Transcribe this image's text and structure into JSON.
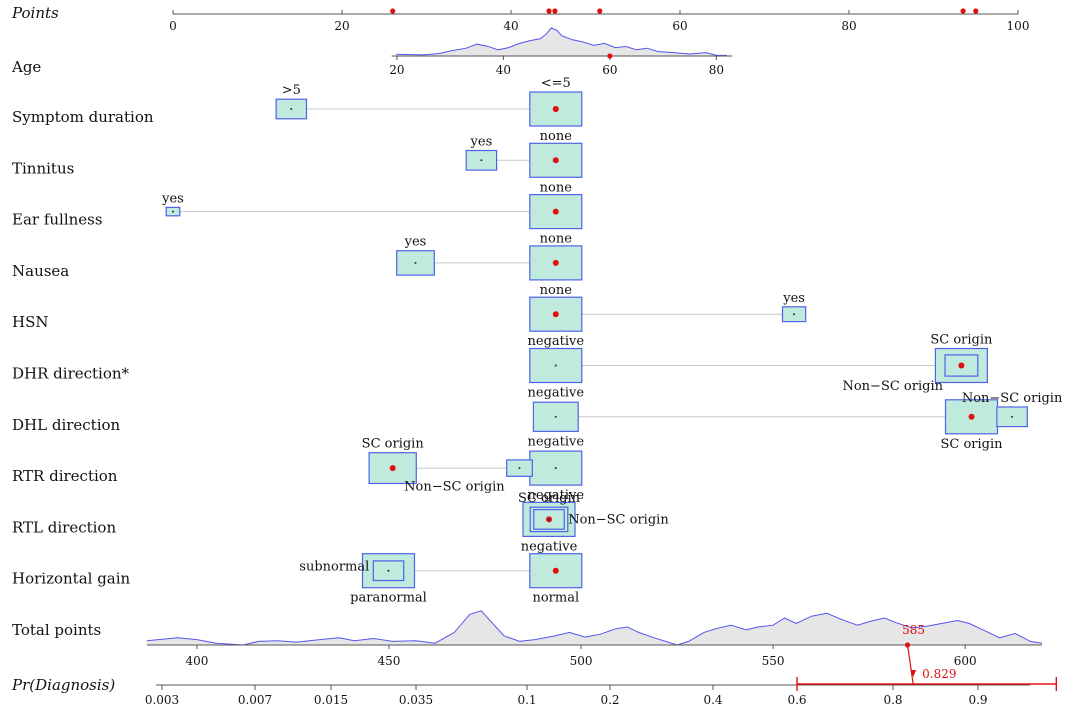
{
  "chart_data": {
    "type": "nomogram",
    "points_axis": {
      "label": "Points",
      "ticks": [
        0,
        20,
        40,
        60,
        80,
        100
      ],
      "marked_values": [
        26,
        44.5,
        45.2,
        50.5,
        93.5,
        95
      ]
    },
    "age": {
      "label": "Age",
      "ticks": [
        20,
        40,
        60,
        80
      ],
      "points_at_20": 26.5,
      "points_at_80": 64.3,
      "marked_value": 60,
      "density": [
        [
          20,
          0.06
        ],
        [
          25,
          0.04
        ],
        [
          28,
          0.09
        ],
        [
          30,
          0.18
        ],
        [
          33,
          0.28
        ],
        [
          35,
          0.42
        ],
        [
          37,
          0.35
        ],
        [
          39,
          0.22
        ],
        [
          41,
          0.3
        ],
        [
          43,
          0.45
        ],
        [
          45,
          0.55
        ],
        [
          47,
          0.62
        ],
        [
          48,
          0.78
        ],
        [
          49,
          1.0
        ],
        [
          50,
          0.92
        ],
        [
          51,
          0.72
        ],
        [
          53,
          0.58
        ],
        [
          55,
          0.5
        ],
        [
          57,
          0.38
        ],
        [
          59,
          0.45
        ],
        [
          61,
          0.3
        ],
        [
          63,
          0.34
        ],
        [
          65,
          0.22
        ],
        [
          67,
          0.28
        ],
        [
          69,
          0.16
        ],
        [
          72,
          0.12
        ],
        [
          75,
          0.07
        ],
        [
          78,
          0.12
        ],
        [
          80,
          0.03
        ],
        [
          82,
          0.02
        ]
      ]
    },
    "variables": [
      {
        "label": "Symptom duration",
        "levels": [
          {
            "name": ">5",
            "points": 14,
            "size": 0.55,
            "pos": "above",
            "selected": false
          },
          {
            "name": "<=5",
            "points": 45.3,
            "size": 1,
            "pos": "above",
            "selected": true
          },
          {
            "name": "none",
            "points": 45.3,
            "size": 1,
            "pos": "below",
            "selected": true
          }
        ]
      },
      {
        "label": "Tinnitus",
        "levels": [
          {
            "name": "yes",
            "points": 36.5,
            "size": 0.55,
            "pos": "above",
            "selected": false
          },
          {
            "name": "none",
            "points": 45.3,
            "size": 1,
            "pos": "below",
            "selected": true
          }
        ]
      },
      {
        "label": "Ear fullness",
        "levels": [
          {
            "name": "yes",
            "points": 0,
            "size": 0.2,
            "pos": "above",
            "selected": false
          },
          {
            "name": "none",
            "points": 45.3,
            "size": 1,
            "pos": "below",
            "selected": true
          }
        ]
      },
      {
        "label": "Nausea",
        "levels": [
          {
            "name": "yes",
            "points": 28.7,
            "size": 0.7,
            "pos": "above",
            "selected": false
          },
          {
            "name": "none",
            "points": 45.3,
            "size": 1,
            "pos": "below",
            "selected": true
          }
        ]
      },
      {
        "label": "HSN",
        "levels": [
          {
            "name": "negative",
            "points": 45.3,
            "size": 1,
            "pos": "below",
            "selected": true
          },
          {
            "name": "yes",
            "points": 73.5,
            "size": 0.4,
            "pos": "above",
            "selected": false
          }
        ]
      },
      {
        "label": "DHR direction*",
        "levels": [
          {
            "name": "negative",
            "points": 45.3,
            "size": 1,
            "pos": "below",
            "selected": false
          },
          {
            "name": "Non−SC origin",
            "points": 93.3,
            "size": 0.6,
            "pos": "below-left",
            "selected": false
          },
          {
            "name": "SC origin",
            "points": 93.3,
            "size": 1,
            "pos": "above",
            "selected": true
          }
        ]
      },
      {
        "label": "DHL direction",
        "levels": [
          {
            "name": "negative",
            "points": 45.3,
            "size": 0.85,
            "pos": "below",
            "selected": false
          },
          {
            "name": "SC origin",
            "points": 94.5,
            "size": 1,
            "pos": "below",
            "selected": true
          },
          {
            "name": "Non−SC origin",
            "points": 99.3,
            "size": 0.55,
            "pos": "above",
            "selected": false
          }
        ]
      },
      {
        "label": "RTR direction",
        "levels": [
          {
            "name": "SC origin",
            "points": 26,
            "size": 0.9,
            "pos": "above",
            "selected": true
          },
          {
            "name": "Non−SC origin",
            "points": 41,
            "size": 0.45,
            "pos": "below-left",
            "selected": false
          },
          {
            "name": "negative",
            "points": 45.3,
            "size": 1,
            "pos": "below",
            "selected": false
          }
        ]
      },
      {
        "label": "RTL direction",
        "levels": [
          {
            "name": "negative",
            "points": 44.5,
            "size": 1,
            "pos": "below",
            "selected": true
          },
          {
            "name": "Non−SC origin",
            "points": 44.5,
            "size": 0.55,
            "pos": "right",
            "selected": false
          },
          {
            "name": "SC origin",
            "points": 44.5,
            "size": 0.7,
            "pos": "above",
            "selected": false
          }
        ]
      },
      {
        "label": "Horizontal gain",
        "levels": [
          {
            "name": "subnormal",
            "points": 25.5,
            "size": 0.55,
            "pos": "left",
            "selected": false
          },
          {
            "name": "paranormal",
            "points": 25.5,
            "size": 1,
            "pos": "below",
            "selected": false
          },
          {
            "name": "normal",
            "points": 45.3,
            "size": 1,
            "pos": "below",
            "selected": true
          }
        ]
      }
    ],
    "total_points": {
      "label": "Total points",
      "ticks": [
        400,
        450,
        500,
        550,
        600
      ],
      "range": [
        387,
        620
      ],
      "marked_value": 585,
      "marked_label": "585",
      "density": [
        [
          387,
          0.12
        ],
        [
          395,
          0.2
        ],
        [
          400,
          0.15
        ],
        [
          405,
          0.05
        ],
        [
          412,
          0.0
        ],
        [
          416,
          0.1
        ],
        [
          421,
          0.12
        ],
        [
          426,
          0.08
        ],
        [
          432,
          0.15
        ],
        [
          437,
          0.2
        ],
        [
          441,
          0.12
        ],
        [
          446,
          0.18
        ],
        [
          451,
          0.1
        ],
        [
          457,
          0.12
        ],
        [
          462,
          0.05
        ],
        [
          467,
          0.35
        ],
        [
          471,
          0.85
        ],
        [
          474,
          0.95
        ],
        [
          477,
          0.6
        ],
        [
          480,
          0.25
        ],
        [
          484,
          0.1
        ],
        [
          488,
          0.15
        ],
        [
          493,
          0.25
        ],
        [
          497,
          0.35
        ],
        [
          501,
          0.22
        ],
        [
          505,
          0.3
        ],
        [
          509,
          0.45
        ],
        [
          512,
          0.5
        ],
        [
          515,
          0.35
        ],
        [
          519,
          0.2
        ],
        [
          522,
          0.1
        ],
        [
          525,
          0.0
        ],
        [
          528,
          0.1
        ],
        [
          532,
          0.35
        ],
        [
          535,
          0.45
        ],
        [
          539,
          0.55
        ],
        [
          543,
          0.42
        ],
        [
          546,
          0.5
        ],
        [
          550,
          0.55
        ],
        [
          553,
          0.75
        ],
        [
          556,
          0.6
        ],
        [
          560,
          0.8
        ],
        [
          564,
          0.88
        ],
        [
          568,
          0.7
        ],
        [
          572,
          0.55
        ],
        [
          575,
          0.65
        ],
        [
          579,
          0.75
        ],
        [
          582,
          0.62
        ],
        [
          586,
          0.48
        ],
        [
          590,
          0.52
        ],
        [
          594,
          0.6
        ],
        [
          598,
          0.68
        ],
        [
          601,
          0.6
        ],
        [
          605,
          0.4
        ],
        [
          609,
          0.2
        ],
        [
          613,
          0.32
        ],
        [
          617,
          0.1
        ],
        [
          620,
          0.05
        ]
      ]
    },
    "probability": {
      "label": "Pr(Diagnosis)",
      "ticks": [
        "0.003",
        "0.007",
        "0.015",
        "0.035",
        "0.1",
        "0.2",
        "0.4",
        "0.6",
        "0.8",
        "0.9"
      ],
      "tick_values": [
        0.003,
        0.007,
        0.015,
        0.035,
        0.1,
        0.2,
        0.4,
        0.6,
        0.8,
        0.9
      ],
      "marked_value": 0.829,
      "marked_label": "0.829",
      "interval": [
        0.6,
        0.95
      ]
    },
    "colors": {
      "box_fill": "#bfeadd",
      "box_border": "#4f63e8",
      "marker": "#e01010",
      "density_line": "#5555ee",
      "density_fill": "#e6e6e6",
      "axis": "#555555"
    }
  }
}
